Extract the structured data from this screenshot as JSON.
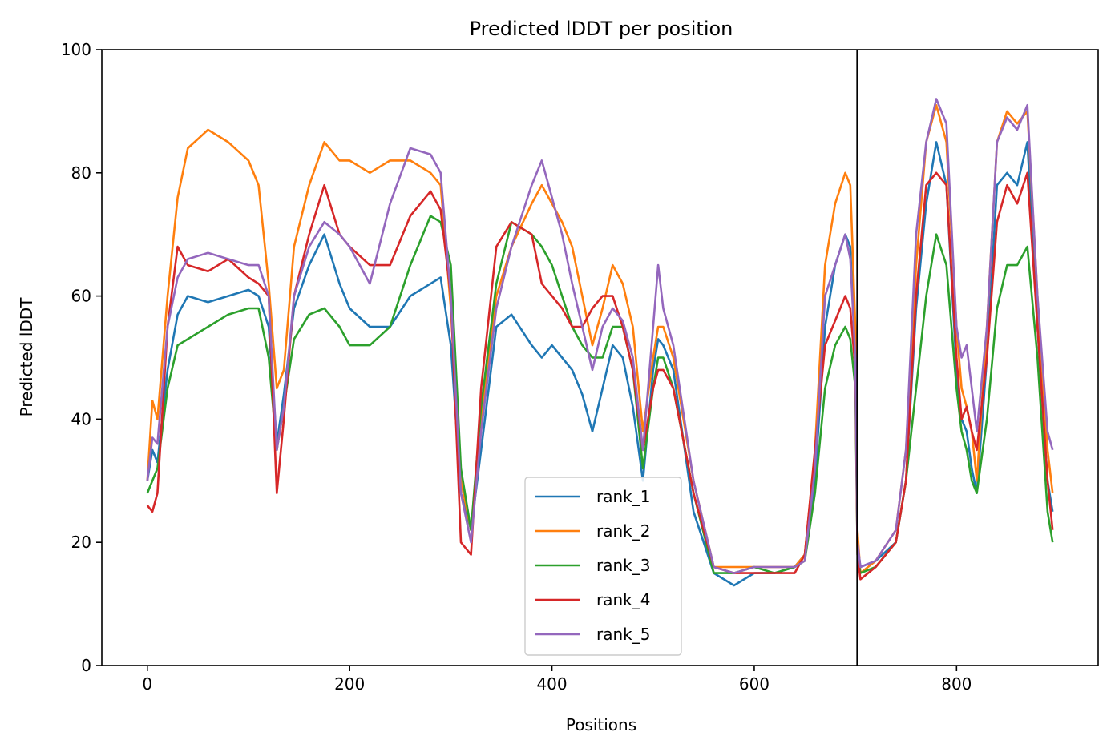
{
  "chart_data": {
    "type": "line",
    "title": "Predicted lDDT per position",
    "xlabel": "Positions",
    "ylabel": "Predicted lDDT",
    "xlim": [
      -45,
      940
    ],
    "ylim": [
      0,
      100
    ],
    "xticks": [
      0,
      200,
      400,
      600,
      800
    ],
    "yticks": [
      0,
      20,
      40,
      60,
      80,
      100
    ],
    "vline": 702,
    "grid": false,
    "legend_position": "lower-center",
    "x": [
      0,
      5,
      10,
      20,
      30,
      40,
      60,
      80,
      100,
      110,
      120,
      128,
      135,
      145,
      160,
      175,
      190,
      200,
      220,
      240,
      260,
      280,
      290,
      300,
      310,
      320,
      330,
      345,
      360,
      380,
      390,
      400,
      410,
      420,
      430,
      440,
      450,
      460,
      470,
      480,
      490,
      500,
      505,
      510,
      520,
      540,
      560,
      580,
      600,
      620,
      640,
      650,
      660,
      670,
      680,
      690,
      695,
      700,
      702,
      705,
      720,
      740,
      750,
      760,
      770,
      780,
      790,
      800,
      805,
      810,
      815,
      820,
      830,
      840,
      850,
      860,
      870,
      880,
      890,
      895
    ],
    "series": [
      {
        "name": "rank_1",
        "color": "#1f77b4",
        "values": [
          30,
          35,
          33,
          48,
          57,
          60,
          59,
          60,
          61,
          60,
          55,
          36,
          44,
          58,
          65,
          70,
          62,
          58,
          55,
          55,
          60,
          62,
          63,
          52,
          28,
          22,
          35,
          55,
          57,
          52,
          50,
          52,
          50,
          48,
          44,
          38,
          45,
          52,
          50,
          42,
          30,
          48,
          53,
          52,
          48,
          25,
          15,
          13,
          15,
          15,
          16,
          18,
          30,
          55,
          65,
          70,
          68,
          50,
          20,
          16,
          17,
          20,
          30,
          58,
          75,
          85,
          78,
          48,
          40,
          38,
          32,
          28,
          50,
          78,
          80,
          78,
          85,
          55,
          30,
          25
        ]
      },
      {
        "name": "rank_2",
        "color": "#ff7f0e",
        "values": [
          30,
          43,
          40,
          60,
          76,
          84,
          87,
          85,
          82,
          78,
          62,
          45,
          48,
          68,
          78,
          85,
          82,
          82,
          80,
          82,
          82,
          80,
          78,
          58,
          30,
          22,
          40,
          60,
          68,
          75,
          78,
          75,
          72,
          68,
          60,
          52,
          58,
          65,
          62,
          55,
          38,
          50,
          55,
          55,
          50,
          30,
          16,
          16,
          16,
          16,
          16,
          18,
          35,
          65,
          75,
          80,
          78,
          55,
          22,
          15,
          17,
          22,
          35,
          65,
          85,
          91,
          85,
          55,
          45,
          42,
          38,
          30,
          55,
          85,
          90,
          88,
          90,
          60,
          35,
          28
        ]
      },
      {
        "name": "rank_3",
        "color": "#2ca02c",
        "values": [
          28,
          30,
          32,
          45,
          52,
          53,
          55,
          57,
          58,
          58,
          50,
          35,
          42,
          53,
          57,
          58,
          55,
          52,
          52,
          55,
          65,
          73,
          72,
          65,
          32,
          22,
          42,
          62,
          72,
          70,
          68,
          65,
          60,
          55,
          52,
          50,
          50,
          55,
          55,
          48,
          32,
          45,
          50,
          50,
          45,
          28,
          15,
          15,
          16,
          15,
          16,
          17,
          28,
          45,
          52,
          55,
          53,
          45,
          18,
          15,
          16,
          20,
          30,
          45,
          60,
          70,
          65,
          45,
          38,
          35,
          30,
          28,
          40,
          58,
          65,
          65,
          68,
          50,
          25,
          20
        ]
      },
      {
        "name": "rank_4",
        "color": "#d62728",
        "values": [
          26,
          25,
          28,
          55,
          68,
          65,
          64,
          66,
          63,
          62,
          60,
          28,
          40,
          60,
          70,
          78,
          70,
          68,
          65,
          65,
          73,
          77,
          74,
          60,
          20,
          18,
          45,
          68,
          72,
          70,
          62,
          60,
          58,
          55,
          55,
          58,
          60,
          60,
          55,
          48,
          35,
          45,
          48,
          48,
          45,
          28,
          16,
          15,
          15,
          15,
          15,
          18,
          35,
          52,
          56,
          60,
          58,
          48,
          18,
          14,
          16,
          20,
          30,
          60,
          78,
          80,
          78,
          50,
          40,
          42,
          38,
          35,
          50,
          72,
          78,
          75,
          80,
          55,
          30,
          22
        ]
      },
      {
        "name": "rank_5",
        "color": "#9467bd",
        "values": [
          30,
          37,
          36,
          55,
          63,
          66,
          67,
          66,
          65,
          65,
          60,
          35,
          42,
          60,
          68,
          72,
          70,
          68,
          62,
          75,
          84,
          83,
          80,
          60,
          28,
          20,
          38,
          58,
          68,
          78,
          82,
          76,
          70,
          62,
          55,
          48,
          55,
          58,
          56,
          50,
          35,
          55,
          65,
          58,
          52,
          30,
          16,
          15,
          16,
          16,
          16,
          17,
          32,
          60,
          65,
          70,
          66,
          50,
          20,
          16,
          17,
          22,
          35,
          70,
          85,
          92,
          88,
          55,
          50,
          52,
          45,
          38,
          55,
          85,
          89,
          87,
          91,
          60,
          38,
          35
        ]
      }
    ]
  }
}
